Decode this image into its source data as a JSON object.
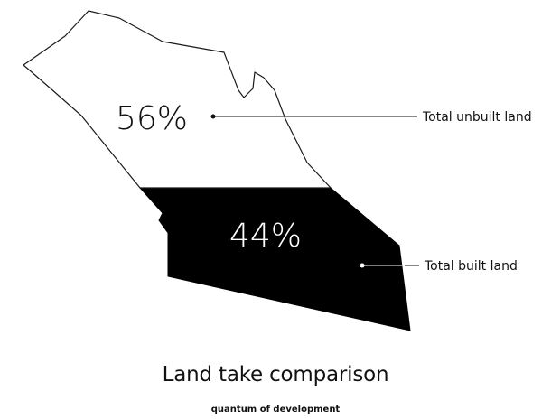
{
  "chart_data": {
    "type": "area",
    "title": "Land take comparison",
    "subtitle": "quantum of development",
    "series": [
      {
        "name": "Total unbuilt land",
        "value": 56,
        "label": "56%",
        "color": "#ffffff"
      },
      {
        "name": "Total built land",
        "value": 44,
        "label": "44%",
        "color": "#000000"
      }
    ],
    "outline_color": "#1a1a1a"
  }
}
